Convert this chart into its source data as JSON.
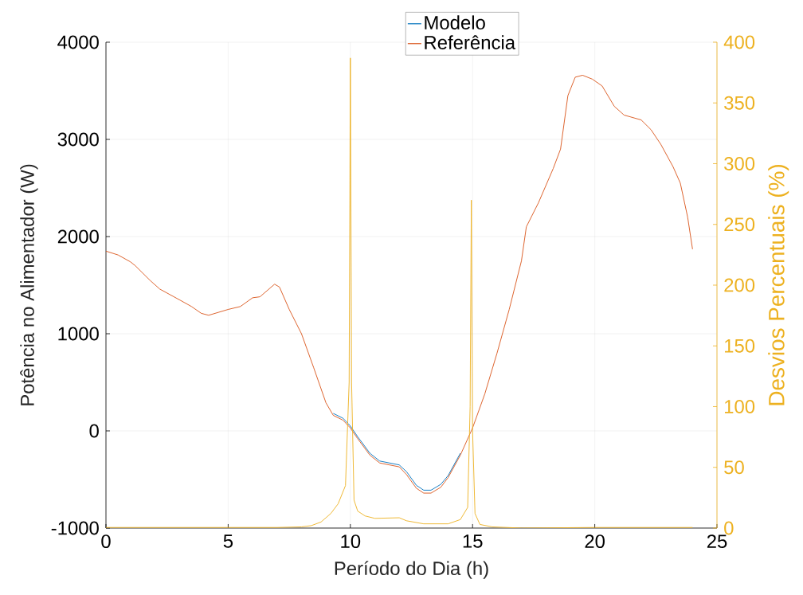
{
  "chart_data": {
    "type": "line",
    "xlabel": "Período do Dia (h)",
    "ylabel": "Potência no Alimentador (W)",
    "y2label": "Desvios Percentuais (%)",
    "xlim": [
      0,
      25
    ],
    "xticks": [
      0,
      5,
      10,
      15,
      20,
      25
    ],
    "ylim": [
      -1000,
      4000
    ],
    "yticks": [
      -1000,
      0,
      1000,
      2000,
      3000,
      4000
    ],
    "y2lim": [
      0,
      400
    ],
    "y2ticks": [
      0,
      50,
      100,
      150,
      200,
      250,
      300,
      350,
      400
    ],
    "grid": true,
    "legend": "top",
    "line_style": "solid",
    "series": [
      {
        "name": "Modelo",
        "color": "#0072bd",
        "x": [
          9.3,
          9.7,
          10,
          10.3,
          10.8,
          11.2,
          11.6,
          12,
          12.3,
          12.7,
          13,
          13.3,
          13.7,
          14,
          14.5
        ],
        "values": [
          180,
          130,
          50,
          -60,
          -230,
          -310,
          -330,
          -350,
          -420,
          -560,
          -610,
          -610,
          -550,
          -460,
          -230
        ]
      },
      {
        "name": "Referência",
        "color": "#d95319",
        "x": [
          0,
          0.5,
          1,
          1.2,
          1.8,
          2.2,
          3,
          3.5,
          3.9,
          4.2,
          4.6,
          5,
          5.5,
          6,
          6.3,
          6.9,
          7.1,
          7.5,
          8,
          8.5,
          9,
          9.3,
          9.7,
          10,
          10.3,
          10.8,
          11.2,
          11.6,
          12,
          12.3,
          12.7,
          13,
          13.3,
          13.7,
          14,
          14.5,
          15,
          15.5,
          16,
          16.5,
          17,
          17.2,
          17.7,
          18.3,
          18.6,
          18.9,
          19.2,
          19.5,
          19.9,
          20.3,
          20.8,
          21.2,
          21.9,
          22.3,
          22.7,
          23.2,
          23.5,
          23.8,
          24
        ],
        "values": [
          1850,
          1810,
          1740,
          1700,
          1550,
          1460,
          1350,
          1280,
          1210,
          1190,
          1220,
          1250,
          1280,
          1370,
          1380,
          1510,
          1480,
          1250,
          1000,
          650,
          290,
          160,
          110,
          30,
          -80,
          -250,
          -330,
          -350,
          -370,
          -450,
          -590,
          -640,
          -640,
          -580,
          -480,
          -250,
          30,
          380,
          800,
          1250,
          1750,
          2100,
          2350,
          2700,
          2900,
          3450,
          3640,
          3660,
          3620,
          3550,
          3340,
          3250,
          3200,
          3100,
          2950,
          2720,
          2550,
          2200,
          1870
        ]
      },
      {
        "color": "#edb120",
        "axis": "y2",
        "x": [
          0,
          5,
          7,
          8,
          8.4,
          8.8,
          9.2,
          9.5,
          9.8,
          9.95,
          10,
          10.05,
          10.15,
          10.3,
          10.6,
          11,
          12,
          12.3,
          13,
          14,
          14.5,
          14.8,
          14.9,
          14.95,
          15,
          15.1,
          15.3,
          15.8,
          17,
          20,
          24
        ],
        "values": [
          0.5,
          0.5,
          0.5,
          1,
          2,
          5,
          12,
          20,
          35,
          120,
          387,
          120,
          23,
          14,
          10,
          8,
          8.5,
          6,
          3.5,
          3.5,
          7,
          17,
          100,
          270,
          80,
          12,
          3,
          1,
          0,
          0.5,
          0.5
        ]
      }
    ]
  }
}
